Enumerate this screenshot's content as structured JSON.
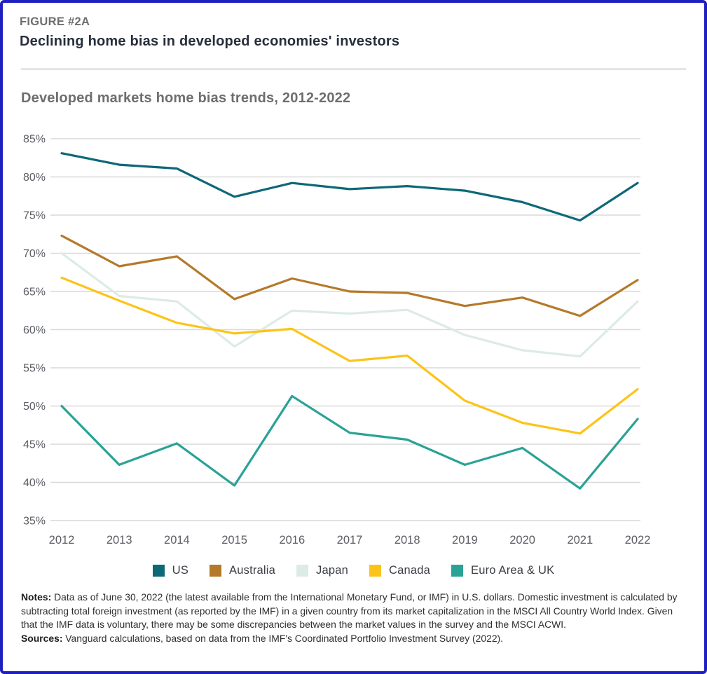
{
  "figure": {
    "label": "FIGURE #2A",
    "title": "Declining home bias in developed economies' investors",
    "subtitle": "Developed markets home bias trends, 2012-2022"
  },
  "chart_data": {
    "type": "line",
    "title": "Developed markets home bias trends, 2012-2022",
    "x": [
      2012,
      2013,
      2014,
      2015,
      2016,
      2017,
      2018,
      2019,
      2020,
      2021,
      2022
    ],
    "series": [
      {
        "name": "US",
        "color": "#0d6878",
        "values": [
          83.1,
          81.6,
          81.1,
          77.4,
          79.2,
          78.4,
          78.8,
          78.2,
          76.7,
          74.3,
          79.2
        ]
      },
      {
        "name": "Australia",
        "color": "#b5792a",
        "values": [
          72.3,
          68.3,
          69.6,
          64.0,
          66.7,
          65.0,
          64.8,
          63.1,
          64.2,
          61.8,
          66.5
        ]
      },
      {
        "name": "Japan",
        "color": "#dcebe6",
        "values": [
          70.0,
          64.4,
          63.7,
          57.8,
          62.5,
          62.1,
          62.6,
          59.3,
          57.3,
          56.5,
          63.7
        ]
      },
      {
        "name": "Canada",
        "color": "#fcc418",
        "values": [
          66.8,
          63.8,
          60.9,
          59.5,
          60.1,
          55.9,
          56.6,
          50.7,
          47.8,
          46.4,
          52.2
        ]
      },
      {
        "name": "Euro Area & UK",
        "color": "#2aa295",
        "values": [
          50.0,
          42.3,
          45.1,
          39.6,
          51.3,
          46.5,
          45.6,
          42.3,
          44.5,
          39.2,
          48.3
        ]
      }
    ],
    "ylim": [
      35,
      85
    ],
    "ytick_step": 5,
    "ytick_suffix": "%",
    "xlabel": "",
    "ylabel": "",
    "grid": "horizontal",
    "legend_position": "bottom",
    "colors": {
      "gridline": "#d9d9d9",
      "axis_label": "#5a5d63",
      "frame_border": "#1f1fc1"
    }
  },
  "notes": {
    "notes_label": "Notes:",
    "notes_text": " Data as of June 30, 2022 (the latest available from the International Monetary Fund, or IMF) in U.S. dollars. Domestic investment is calculated by subtracting total foreign investment (as reported by the IMF) in a given country from its market capitalization in the MSCI All Country World Index. Given that the IMF data is voluntary, there may be some discrepancies between the market values in the survey and the MSCI ACWI.",
    "sources_label": "Sources:",
    "sources_text": " Vanguard calculations, based on data from the IMF's Coordinated Portfolio Investment Survey (2022)."
  }
}
